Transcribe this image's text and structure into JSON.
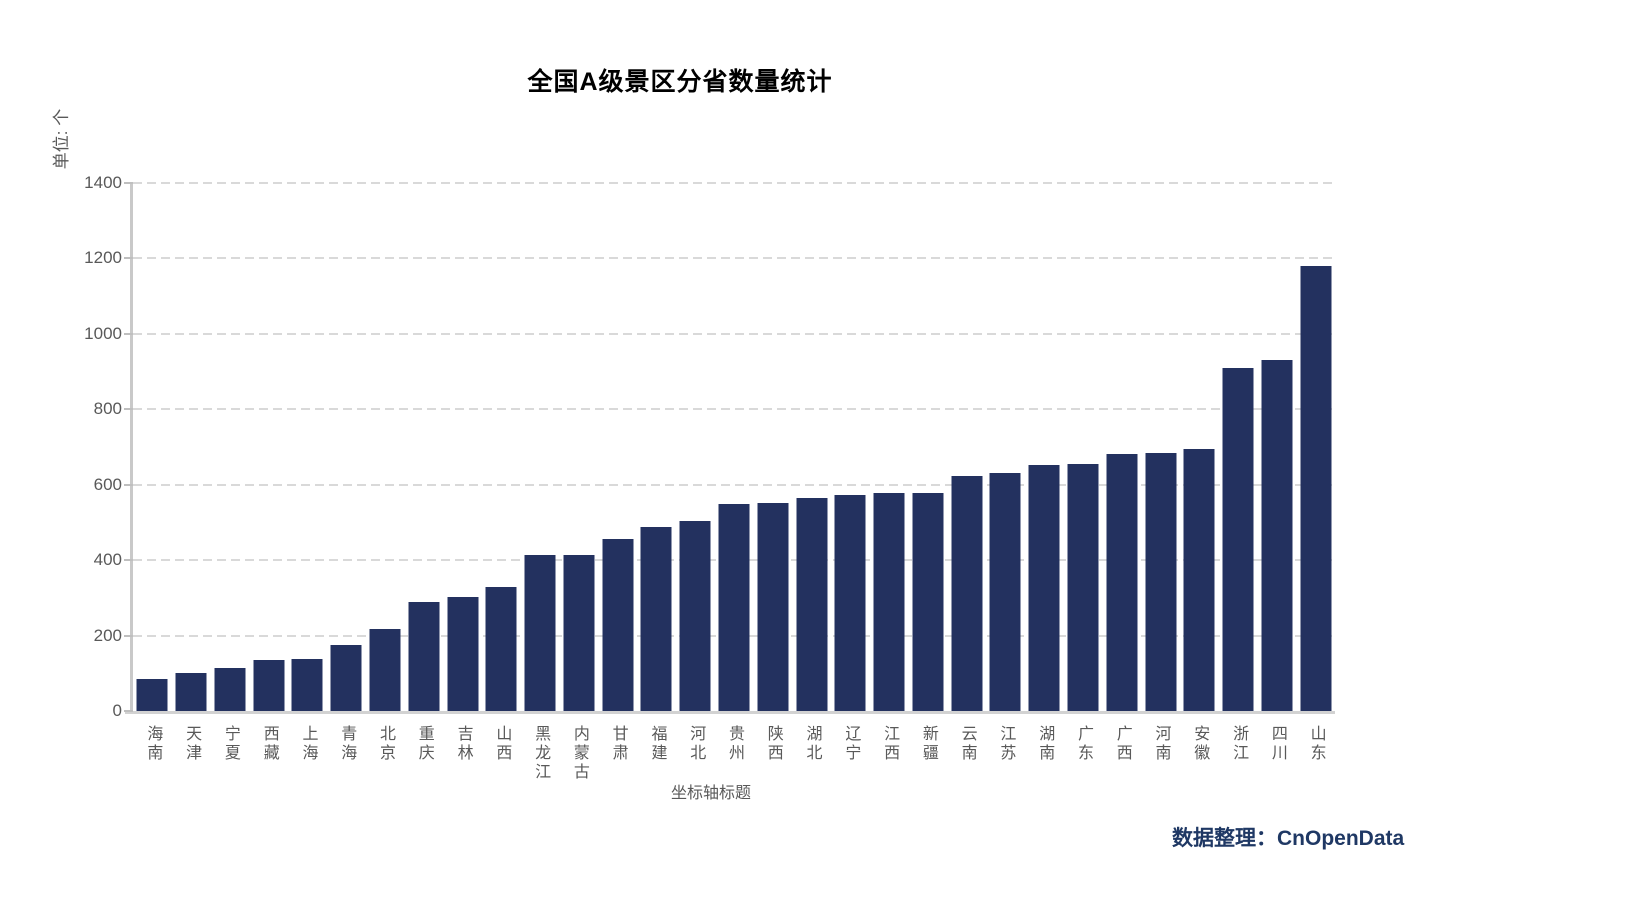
{
  "chart_data": {
    "type": "bar",
    "title": "全国A级景区分省数量统计",
    "y_unit_label": "单位: 个",
    "x_axis_title": "坐标轴标题",
    "categories": [
      "海南",
      "天津",
      "宁夏",
      "西藏",
      "上海",
      "青海",
      "北京",
      "重庆",
      "吉林",
      "山西",
      "黑龙江",
      "内蒙古",
      "甘肃",
      "福建",
      "河北",
      "贵州",
      "陕西",
      "湖北",
      "辽宁",
      "江西",
      "新疆",
      "云南",
      "江苏",
      "湖南",
      "广东",
      "广西",
      "河南",
      "安徽",
      "浙江",
      "四川",
      "山东"
    ],
    "values": [
      85,
      100,
      115,
      135,
      138,
      175,
      217,
      290,
      303,
      330,
      413,
      414,
      457,
      489,
      504,
      548,
      551,
      566,
      572,
      577,
      578,
      622,
      632,
      652,
      655,
      682,
      683,
      696,
      909,
      932,
      1180
    ],
    "ylim": [
      0,
      1400
    ],
    "yticks": [
      0,
      200,
      400,
      600,
      800,
      1000,
      1200,
      1400
    ],
    "grid": "horizontal-dashed",
    "legend": "none",
    "bar_color": "#23315f",
    "gridline_color": "#d9d9d9",
    "axis_color": "#c9c9c9",
    "tick_label_color": "#595959",
    "title_color": "#000000"
  },
  "footer": {
    "credit": "数据整理：CnOpenData",
    "credit_color": "#1f3864"
  }
}
